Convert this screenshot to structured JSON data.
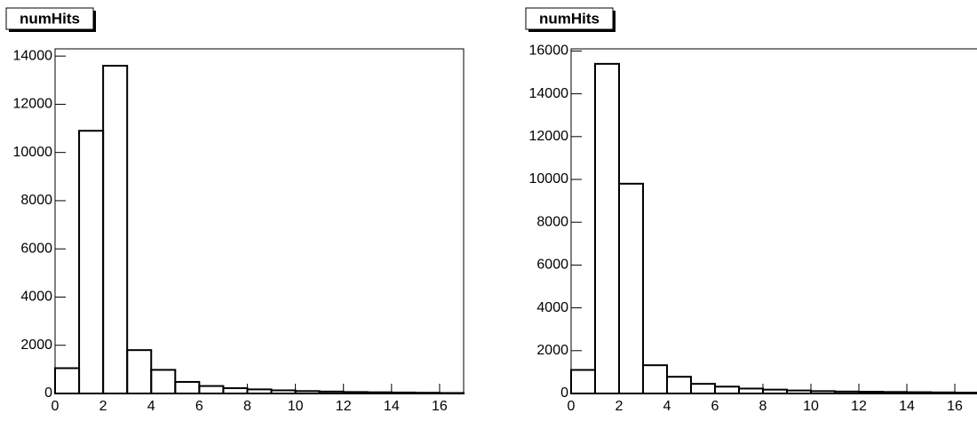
{
  "chart_data": [
    {
      "type": "histogram",
      "title": "numHits",
      "bins": [
        0,
        1,
        2,
        3,
        4,
        5,
        6,
        7,
        8,
        9,
        10,
        11,
        12,
        13,
        14,
        15,
        16,
        17
      ],
      "values": [
        1050,
        10900,
        13600,
        1800,
        980,
        480,
        310,
        220,
        170,
        130,
        100,
        80,
        60,
        50,
        40,
        30,
        20
      ],
      "color": "#000000",
      "xlim": [
        0,
        17
      ],
      "xticks": [
        0,
        2,
        4,
        6,
        8,
        10,
        12,
        14,
        16
      ],
      "ylim": [
        0,
        14300
      ],
      "yticks": [
        0,
        2000,
        4000,
        6000,
        8000,
        10000,
        12000,
        14000
      ]
    },
    {
      "type": "histogram",
      "title": "numHits",
      "bins": [
        0,
        1,
        2,
        3,
        4,
        5,
        6,
        7,
        8,
        9,
        10,
        11,
        12,
        13,
        14,
        15,
        16,
        17
      ],
      "values": [
        1100,
        15400,
        9800,
        1320,
        780,
        450,
        320,
        230,
        180,
        140,
        110,
        90,
        80,
        70,
        60,
        50,
        40
      ],
      "color": "#000000",
      "xlim": [
        0,
        17
      ],
      "xticks": [
        0,
        2,
        4,
        6,
        8,
        10,
        12,
        14,
        16
      ],
      "ylim": [
        0,
        16100
      ],
      "yticks": [
        0,
        2000,
        4000,
        6000,
        8000,
        10000,
        12000,
        14000,
        16000
      ]
    }
  ]
}
